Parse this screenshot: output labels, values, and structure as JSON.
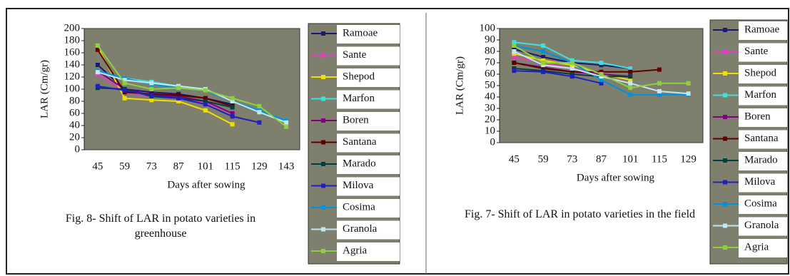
{
  "chart_data": [
    {
      "type": "line",
      "xlabel": "Days after sowing",
      "ylabel": "LAR (Cm/gr)",
      "caption": "Fig. 8- Shift of LAR in potato varieties in greenhouse",
      "categories": [
        "45",
        "59",
        "73",
        "87",
        "101",
        "115",
        "129",
        "143"
      ],
      "ylim": [
        0,
        200
      ],
      "yticks": [
        0,
        20,
        40,
        60,
        80,
        100,
        120,
        140,
        160,
        180,
        200
      ],
      "series": [
        {
          "name": "Ramoae",
          "color": "#1a1a6e",
          "values": [
            140,
            100,
            95,
            92,
            85,
            75,
            null,
            null
          ]
        },
        {
          "name": "Sante",
          "color": "#e040c0",
          "values": [
            125,
            95,
            88,
            85,
            78,
            60,
            null,
            null
          ]
        },
        {
          "name": "Shepod",
          "color": "#f0e000",
          "values": [
            170,
            85,
            82,
            80,
            65,
            42,
            null,
            null
          ]
        },
        {
          "name": "Marfon",
          "color": "#40e0e0",
          "values": [
            130,
            118,
            112,
            105,
            100,
            80,
            65,
            48
          ]
        },
        {
          "name": "Boren",
          "color": "#800080",
          "values": [
            130,
            100,
            90,
            88,
            80,
            60,
            null,
            null
          ]
        },
        {
          "name": "Santana",
          "color": "#600000",
          "values": [
            165,
            95,
            92,
            90,
            85,
            72,
            null,
            null
          ]
        },
        {
          "name": "Marado",
          "color": "#004040",
          "values": [
            102,
            100,
            88,
            85,
            80,
            70,
            null,
            null
          ]
        },
        {
          "name": "Milova",
          "color": "#2020c0",
          "values": [
            105,
            98,
            90,
            85,
            75,
            55,
            45,
            null
          ]
        },
        {
          "name": "Cosima",
          "color": "#0090e0",
          "values": [
            130,
            118,
            108,
            102,
            98,
            80,
            65,
            48
          ]
        },
        {
          "name": "Granola",
          "color": "#c0e8f0",
          "values": [
            128,
            115,
            110,
            105,
            100,
            80,
            62,
            45
          ]
        },
        {
          "name": "Agria",
          "color": "#90d040",
          "values": [
            172,
            110,
            100,
            102,
            98,
            85,
            72,
            38
          ]
        }
      ]
    },
    {
      "type": "line",
      "xlabel": "Days after sowing",
      "ylabel": "LAR (Cm/gr)",
      "caption": "Fig. 7- Shift of LAR in potato varieties in the field",
      "categories": [
        "45",
        "59",
        "73",
        "87",
        "101",
        "115",
        "129"
      ],
      "ylim": [
        0,
        100
      ],
      "yticks": [
        0,
        10,
        20,
        30,
        40,
        50,
        60,
        70,
        80,
        90,
        100
      ],
      "series": [
        {
          "name": "Ramoae",
          "color": "#1a1a6e",
          "values": [
            82,
            75,
            70,
            68,
            65,
            null,
            null
          ]
        },
        {
          "name": "Sante",
          "color": "#e040c0",
          "values": [
            75,
            70,
            65,
            60,
            55,
            null,
            null
          ]
        },
        {
          "name": "Shepod",
          "color": "#f0e000",
          "values": [
            78,
            72,
            68,
            60,
            55,
            null,
            null
          ]
        },
        {
          "name": "Marfon",
          "color": "#40e0e0",
          "values": [
            88,
            85,
            72,
            70,
            65,
            null,
            null
          ]
        },
        {
          "name": "Boren",
          "color": "#800080",
          "values": [
            70,
            66,
            62,
            60,
            58,
            null,
            null
          ]
        },
        {
          "name": "Santana",
          "color": "#600000",
          "values": [
            70,
            65,
            62,
            62,
            62,
            64,
            null
          ]
        },
        {
          "name": "Marado",
          "color": "#004040",
          "values": [
            65,
            63,
            60,
            58,
            58,
            null,
            null
          ]
        },
        {
          "name": "Milova",
          "color": "#2020c0",
          "values": [
            63,
            62,
            58,
            52,
            null,
            null,
            null
          ]
        },
        {
          "name": "Cosima",
          "color": "#0090e0",
          "values": [
            85,
            80,
            70,
            55,
            42,
            42,
            42
          ]
        },
        {
          "name": "Granola",
          "color": "#c0e8f0",
          "values": [
            80,
            68,
            65,
            58,
            52,
            45,
            43
          ]
        },
        {
          "name": "Agria",
          "color": "#90d040",
          "values": [
            85,
            70,
            70,
            60,
            48,
            52,
            52
          ]
        }
      ]
    }
  ]
}
